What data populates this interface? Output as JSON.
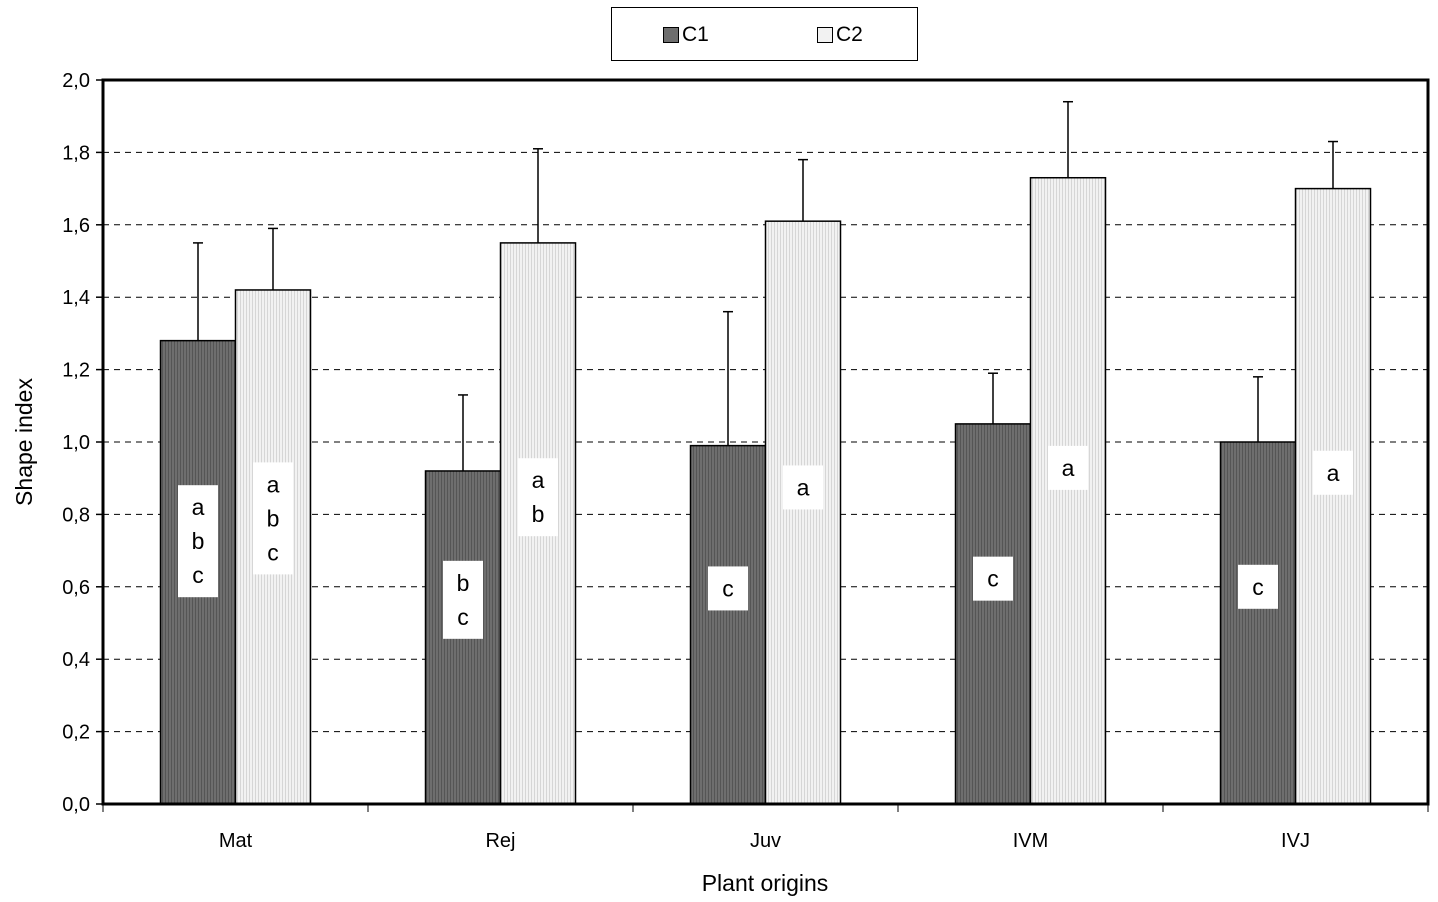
{
  "chart_data": {
    "type": "bar",
    "xlabel": "Plant origins",
    "ylabel": "Shape index",
    "ylim": [
      0,
      2.0
    ],
    "yticks": [
      "0,0",
      "0,2",
      "0,4",
      "0,6",
      "0,8",
      "1,0",
      "1,2",
      "1,4",
      "1,6",
      "1,8",
      "2,0"
    ],
    "grid": "horizontal dashed",
    "legend_position": "top-center",
    "categories": [
      "Mat",
      "Rej",
      "Juv",
      "IVM",
      "IVJ"
    ],
    "series": [
      {
        "name": "C1",
        "color": "#666666",
        "values": [
          1.28,
          0.92,
          0.99,
          1.05,
          1.0
        ],
        "errors": [
          0.27,
          0.21,
          0.37,
          0.14,
          0.18
        ],
        "letters": [
          "a\nb\nc",
          "b\nc",
          "c",
          "c",
          "c"
        ]
      },
      {
        "name": "C2",
        "color": "#eeeeee",
        "values": [
          1.42,
          1.55,
          1.61,
          1.73,
          1.7
        ],
        "errors": [
          0.17,
          0.26,
          0.17,
          0.21,
          0.13
        ],
        "letters": [
          "a\nb\nc",
          "a\nb",
          "a",
          "a",
          "a"
        ]
      }
    ]
  }
}
